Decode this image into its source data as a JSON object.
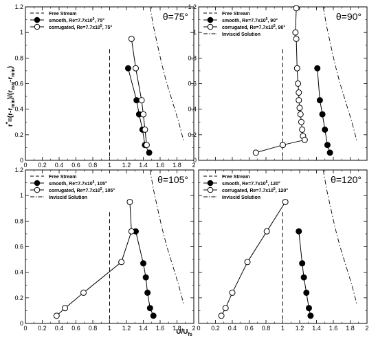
{
  "figure": {
    "xlabel": "U/U",
    "xlabel_sub": "fs",
    "ylabel_main": "r",
    "ylabel_sup": "*",
    "ylabel_tail": "=(r-r",
    "ylabel_sub_a": "min",
    "ylabel_mid": ")/(r",
    "ylabel_sub_b": "maj",
    "ylabel_dash": "-r",
    "ylabel_sub_c": "min",
    "ylabel_end": ")"
  },
  "chart_data": [
    {
      "type": "line",
      "title": "θ=75°",
      "xlim": [
        0,
        2
      ],
      "ylim": [
        0,
        1.2
      ],
      "xticks": [
        "0",
        "0.2",
        "0.4",
        "0.6",
        "0.8",
        "1",
        "1.2",
        "1.4",
        "1.6",
        "1.8",
        "2"
      ],
      "yticks": [
        "0",
        "0.2",
        "0.4",
        "0.6",
        "0.8",
        "1",
        "1.2"
      ],
      "legend": {
        "free_stream": "Free Stream",
        "smooth": "smooth, Re=7.7x10",
        "smooth_exp": "5",
        "smooth_tail": ", 75°",
        "corrugated": "corrugated, Re=7.7x10",
        "corrugated_exp": "5",
        "corrugated_tail": ", 75°",
        "inviscid": ""
      },
      "free_stream_x": 1.0,
      "series": [
        {
          "name": "smooth",
          "x": [
            1.22,
            1.32,
            1.35,
            1.39,
            1.42,
            1.47
          ],
          "y": [
            0.72,
            0.47,
            0.36,
            0.24,
            0.12,
            0.06
          ]
        },
        {
          "name": "corrugated",
          "x": [
            1.26,
            1.31,
            1.38,
            1.4,
            1.42,
            1.44
          ],
          "y": [
            0.95,
            0.72,
            0.47,
            0.36,
            0.24,
            0.12
          ]
        },
        {
          "name": "Inviscid Solution",
          "x": [
            1.48,
            1.52,
            1.57,
            1.62,
            1.68,
            1.75,
            1.82,
            1.88
          ],
          "y": [
            1.2,
            1.05,
            0.9,
            0.75,
            0.6,
            0.45,
            0.3,
            0.15
          ]
        }
      ]
    },
    {
      "type": "line",
      "title": "θ=90°",
      "xlim": [
        0,
        2
      ],
      "ylim": [
        0,
        1.2
      ],
      "xticks": [],
      "yticks": [
        "0",
        "0.2",
        "0.4",
        "0.6",
        "0.8",
        "1",
        "1.2"
      ],
      "legend": {
        "free_stream": "Free Stream",
        "smooth": "smooth, Re=7.7x10",
        "smooth_exp": "5",
        "smooth_tail": ", 90°",
        "corrugated": "corrugated, Re=7.7x10",
        "corrugated_exp": "5",
        "corrugated_tail": ", 90°",
        "inviscid": "Inviscid Solution"
      },
      "free_stream_x": 1.0,
      "series": [
        {
          "name": "smooth",
          "x": [
            1.41,
            1.44,
            1.47,
            1.5,
            1.53,
            1.56
          ],
          "y": [
            0.72,
            0.47,
            0.36,
            0.24,
            0.12,
            0.06
          ]
        },
        {
          "name": "corrugated",
          "x": [
            1.16,
            1.15,
            1.16,
            1.17,
            1.18,
            1.19,
            1.19,
            1.2,
            1.21,
            1.22,
            1.23,
            1.24,
            1.26,
            1.0,
            0.68
          ],
          "y": [
            1.19,
            1.0,
            0.95,
            0.72,
            0.6,
            0.53,
            0.47,
            0.41,
            0.36,
            0.3,
            0.24,
            0.19,
            0.16,
            0.12,
            0.06
          ]
        },
        {
          "name": "Inviscid Solution",
          "x": [
            1.48,
            1.52,
            1.57,
            1.62,
            1.68,
            1.75,
            1.82,
            1.88
          ],
          "y": [
            1.2,
            1.05,
            0.9,
            0.75,
            0.6,
            0.45,
            0.3,
            0.15
          ]
        }
      ]
    },
    {
      "type": "line",
      "title": "θ=105°",
      "xlim": [
        0,
        2
      ],
      "ylim": [
        0,
        1.2
      ],
      "xticks": [
        "0",
        "0.2",
        "0.4",
        "0.6",
        "0.8",
        "1",
        "1.2",
        "1.4",
        "1.6",
        "1.8",
        "2"
      ],
      "yticks": [
        "0",
        "0.2",
        "0.4",
        "0.6",
        "0.8",
        "1",
        "1.2"
      ],
      "legend": {
        "free_stream": "Free Stream",
        "smooth": "smooth, Re=7.7x10",
        "smooth_exp": "5",
        "smooth_tail": ", 105°",
        "corrugated": "corrugated, Re=7.7x10",
        "corrugated_exp": "5",
        "corrugated_tail": ", 105°",
        "inviscid": "Inviscid Solution"
      },
      "free_stream_x": 1.0,
      "series": [
        {
          "name": "smooth",
          "x": [
            1.31,
            1.4,
            1.43,
            1.45,
            1.48,
            1.52
          ],
          "y": [
            0.72,
            0.47,
            0.36,
            0.24,
            0.12,
            0.06
          ]
        },
        {
          "name": "corrugated",
          "x": [
            1.24,
            1.26,
            1.14,
            0.69,
            0.47,
            0.37
          ],
          "y": [
            0.95,
            0.72,
            0.48,
            0.24,
            0.12,
            0.06
          ]
        },
        {
          "name": "Inviscid Solution",
          "x": [
            1.48,
            1.52,
            1.57,
            1.62,
            1.68,
            1.75,
            1.82,
            1.88
          ],
          "y": [
            1.2,
            1.05,
            0.9,
            0.75,
            0.6,
            0.45,
            0.3,
            0.15
          ]
        }
      ]
    },
    {
      "type": "line",
      "title": "θ=120°",
      "xlim": [
        0,
        2
      ],
      "ylim": [
        0,
        1.2
      ],
      "xticks": [
        "0",
        "0.2",
        "0.4",
        "0.6",
        "0.8",
        "1",
        "1.2",
        "1.4",
        "1.6",
        "1.8",
        "2"
      ],
      "yticks": [],
      "legend": {
        "free_stream": "Free Stream",
        "smooth": "smooth, Re=7.7x10",
        "smooth_exp": "5",
        "smooth_tail": ", 120°",
        "corrugated": "corrugated, Re=7.7x10",
        "corrugated_exp": "5",
        "corrugated_tail": ", 120°",
        "inviscid": "Inviscid Solution"
      },
      "free_stream_x": 1.0,
      "series": [
        {
          "name": "smooth",
          "x": [
            1.19,
            1.23,
            1.25,
            1.28,
            1.31,
            1.33
          ],
          "y": [
            0.72,
            0.47,
            0.36,
            0.24,
            0.12,
            0.06
          ]
        },
        {
          "name": "corrugated",
          "x": [
            1.03,
            0.81,
            0.58,
            0.4,
            0.32,
            0.27
          ],
          "y": [
            0.95,
            0.72,
            0.48,
            0.24,
            0.12,
            0.06
          ]
        },
        {
          "name": "Inviscid Solution",
          "x": [
            1.48,
            1.52,
            1.57,
            1.62,
            1.68,
            1.75,
            1.82,
            1.88
          ],
          "y": [
            1.2,
            1.05,
            0.9,
            0.75,
            0.6,
            0.45,
            0.3,
            0.15
          ]
        }
      ]
    }
  ]
}
